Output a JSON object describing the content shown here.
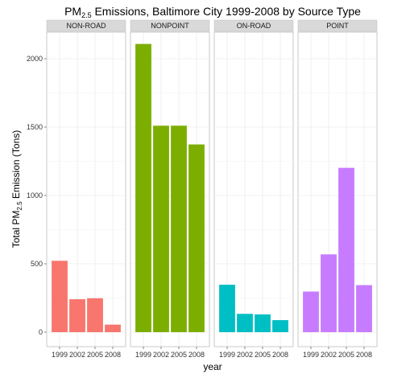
{
  "chart_data": {
    "type": "bar",
    "title": {
      "base": "PM",
      "sub": "2.5",
      "rest": " Emissions, Baltimore City 1999-2008 by Source Type"
    },
    "xlabel": "year",
    "ylabel": {
      "base": "Total PM",
      "sub": "2.5",
      "rest": " Emission (Tons)"
    },
    "categories": [
      "1999",
      "2002",
      "2005",
      "2008"
    ],
    "ylim": [
      0,
      2260
    ],
    "yticks": [
      {
        "value": 0,
        "label": "0"
      },
      {
        "value": 500,
        "label": "500"
      },
      {
        "value": 1000,
        "label": "1000"
      },
      {
        "value": 1500,
        "label": "1500"
      },
      {
        "value": 2000,
        "label": "2000"
      }
    ],
    "grid": true,
    "panels": [
      {
        "name": "NON-ROAD",
        "color": "#F8766D",
        "values": [
          522,
          241,
          248,
          55
        ]
      },
      {
        "name": "NONPOINT",
        "color": "#7CAE00",
        "values": [
          2108,
          1510,
          1510,
          1373
        ]
      },
      {
        "name": "ON-ROAD",
        "color": "#00BFC4",
        "values": [
          347,
          134,
          130,
          88
        ]
      },
      {
        "name": "POINT",
        "color": "#C77CFF",
        "values": [
          297,
          569,
          1202,
          344
        ]
      }
    ]
  }
}
